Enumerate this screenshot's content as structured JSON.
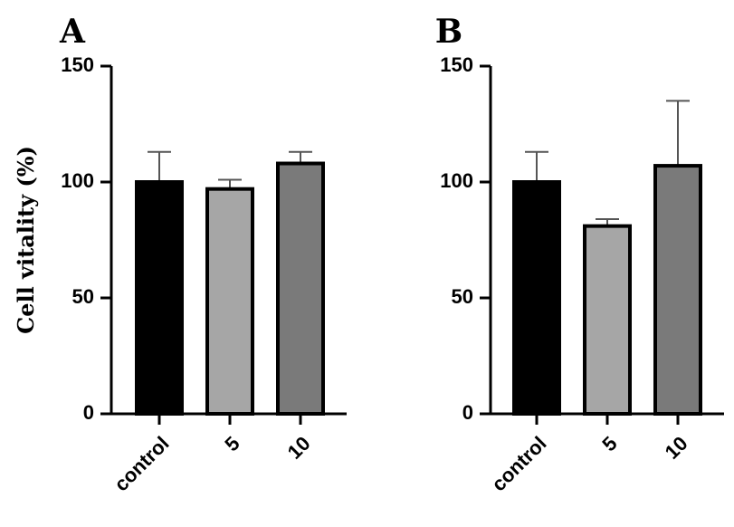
{
  "chart_data": [
    {
      "type": "bar",
      "panel": "A",
      "ylabel": "Cell vitality (%)",
      "categories": [
        "control",
        "5",
        "10"
      ],
      "values": [
        100,
        97,
        108
      ],
      "errors": [
        13,
        4,
        5
      ],
      "bar_colors": [
        "#000000",
        "#a6a6a6",
        "#7a7a7a"
      ],
      "ylim": [
        0,
        150
      ],
      "yticks": [
        "0",
        "50",
        "100",
        "150"
      ],
      "grid": false
    },
    {
      "type": "bar",
      "panel": "B",
      "ylabel": "",
      "categories": [
        "control",
        "5",
        "10"
      ],
      "values": [
        100,
        81,
        107
      ],
      "errors": [
        13,
        3,
        28
      ],
      "bar_colors": [
        "#000000",
        "#a6a6a6",
        "#7a7a7a"
      ],
      "ylim": [
        0,
        150
      ],
      "yticks": [
        "0",
        "50",
        "100",
        "150"
      ],
      "grid": false
    }
  ]
}
